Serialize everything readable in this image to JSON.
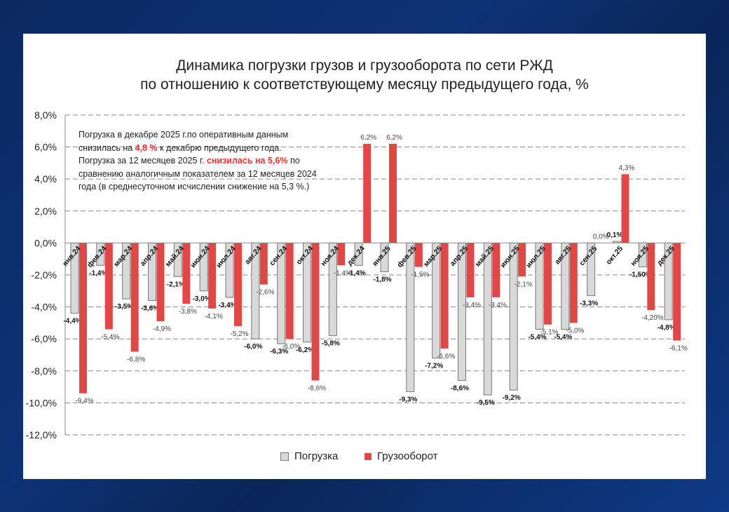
{
  "chart_data": {
    "type": "bar",
    "title": [
      "Динамика  погрузки грузов и грузооборота по сети РЖД",
      "по отношению к соответствующему месяцу предыдущего года, %"
    ],
    "xlabel": "",
    "ylabel": "",
    "ylim": [
      -12,
      8
    ],
    "yticks": [
      8,
      6,
      4,
      2,
      0,
      -2,
      -4,
      -6,
      -8,
      -10,
      -12
    ],
    "ytick_labels": [
      "8,0%",
      "6,0%",
      "4,0%",
      "2,0%",
      "0,0%",
      "-2,0%",
      "-4,0%",
      "-6,0%",
      "-8,0%",
      "-10,0%",
      "-12,0%"
    ],
    "grid": true,
    "legend_position": "bottom",
    "categories": [
      "янв.24",
      "фев.24",
      "мар.24",
      "апр.24",
      "май.24",
      "июн.24",
      "июл.24",
      "авг.24",
      "сен.24",
      "окт.24",
      "ноя.24",
      "дек.24",
      "янв.25",
      "фев.25",
      "мар.25",
      "апр.25",
      "май.25",
      "июн.25",
      "июл.25",
      "авг.25",
      "сен.25",
      "окт.25",
      "ноя.25",
      "дек.25"
    ],
    "series": [
      {
        "name": "Погрузка",
        "color": "#d9d9d9",
        "values": [
          -4.4,
          -1.4,
          -3.5,
          -3.6,
          -2.1,
          -3.0,
          -3.4,
          -6.0,
          -6.3,
          -6.2,
          -5.8,
          -1.4,
          -1.8,
          -9.3,
          -7.2,
          -8.6,
          -9.5,
          -9.2,
          -5.4,
          -5.4,
          -3.3,
          0.1,
          -1.5,
          -4.8
        ],
        "labels": [
          "-4,4%",
          "-1,4%",
          "-3,5%",
          "-3,6%",
          "-2,1%",
          "-3,0%",
          "-3,4%",
          "-6,0%",
          "-6,3%",
          "-6,2%",
          "-5,8%",
          "-1,4%",
          "-1,8%",
          "-9,3%",
          "-7,2%",
          "-8,6%",
          "-9,5%",
          "-9,2%",
          "-5,4%",
          "-5,4%",
          "-3,3%",
          "0,1%",
          "-1,50%",
          "-4,8%"
        ]
      },
      {
        "name": "Грузооборот",
        "color": "#e04848",
        "values": [
          -9.4,
          -5.4,
          -6.8,
          -4.9,
          -3.8,
          -4.1,
          -5.2,
          -2.6,
          -6.0,
          -8.6,
          -1.4,
          6.2,
          6.2,
          -1.5,
          -6.6,
          -3.4,
          -3.4,
          -2.1,
          -5.1,
          -5.0,
          0.0,
          4.3,
          -4.2,
          -6.1
        ],
        "labels": [
          "-9,4%",
          "-5,4%",
          "-6,8%",
          "-4,9%",
          "-3,8%",
          "-4,1%",
          "-5,2%",
          "-2,6%",
          "-6,0%",
          "-8,6%",
          "-1,4%",
          "6,2%",
          "6,2%",
          "-1,5%",
          "-6,6%",
          "-3,4%",
          "-3,4%",
          "-2,1%",
          "-5,1%",
          "-5,0%",
          "0,0%",
          "4,3%",
          "-4,20%",
          "-6,1%"
        ]
      }
    ]
  },
  "note": {
    "l1": "Погрузка в декабре 2025 г.по оперативным данным",
    "l2a": "снизилась на ",
    "l2b": "4,8 %",
    "l2c": " к декабрю предыдущего года.",
    "l3a": "Погрузка за 12 месяцев 2025 г. ",
    "l3b": "снизилась на 5,6%",
    "l3c": " по",
    "l4": "сравнению аналогичным показателем за 12 месяцев 2024",
    "l5": "года (в среднесуточном исчислении снижение на  5,3 %.)"
  }
}
